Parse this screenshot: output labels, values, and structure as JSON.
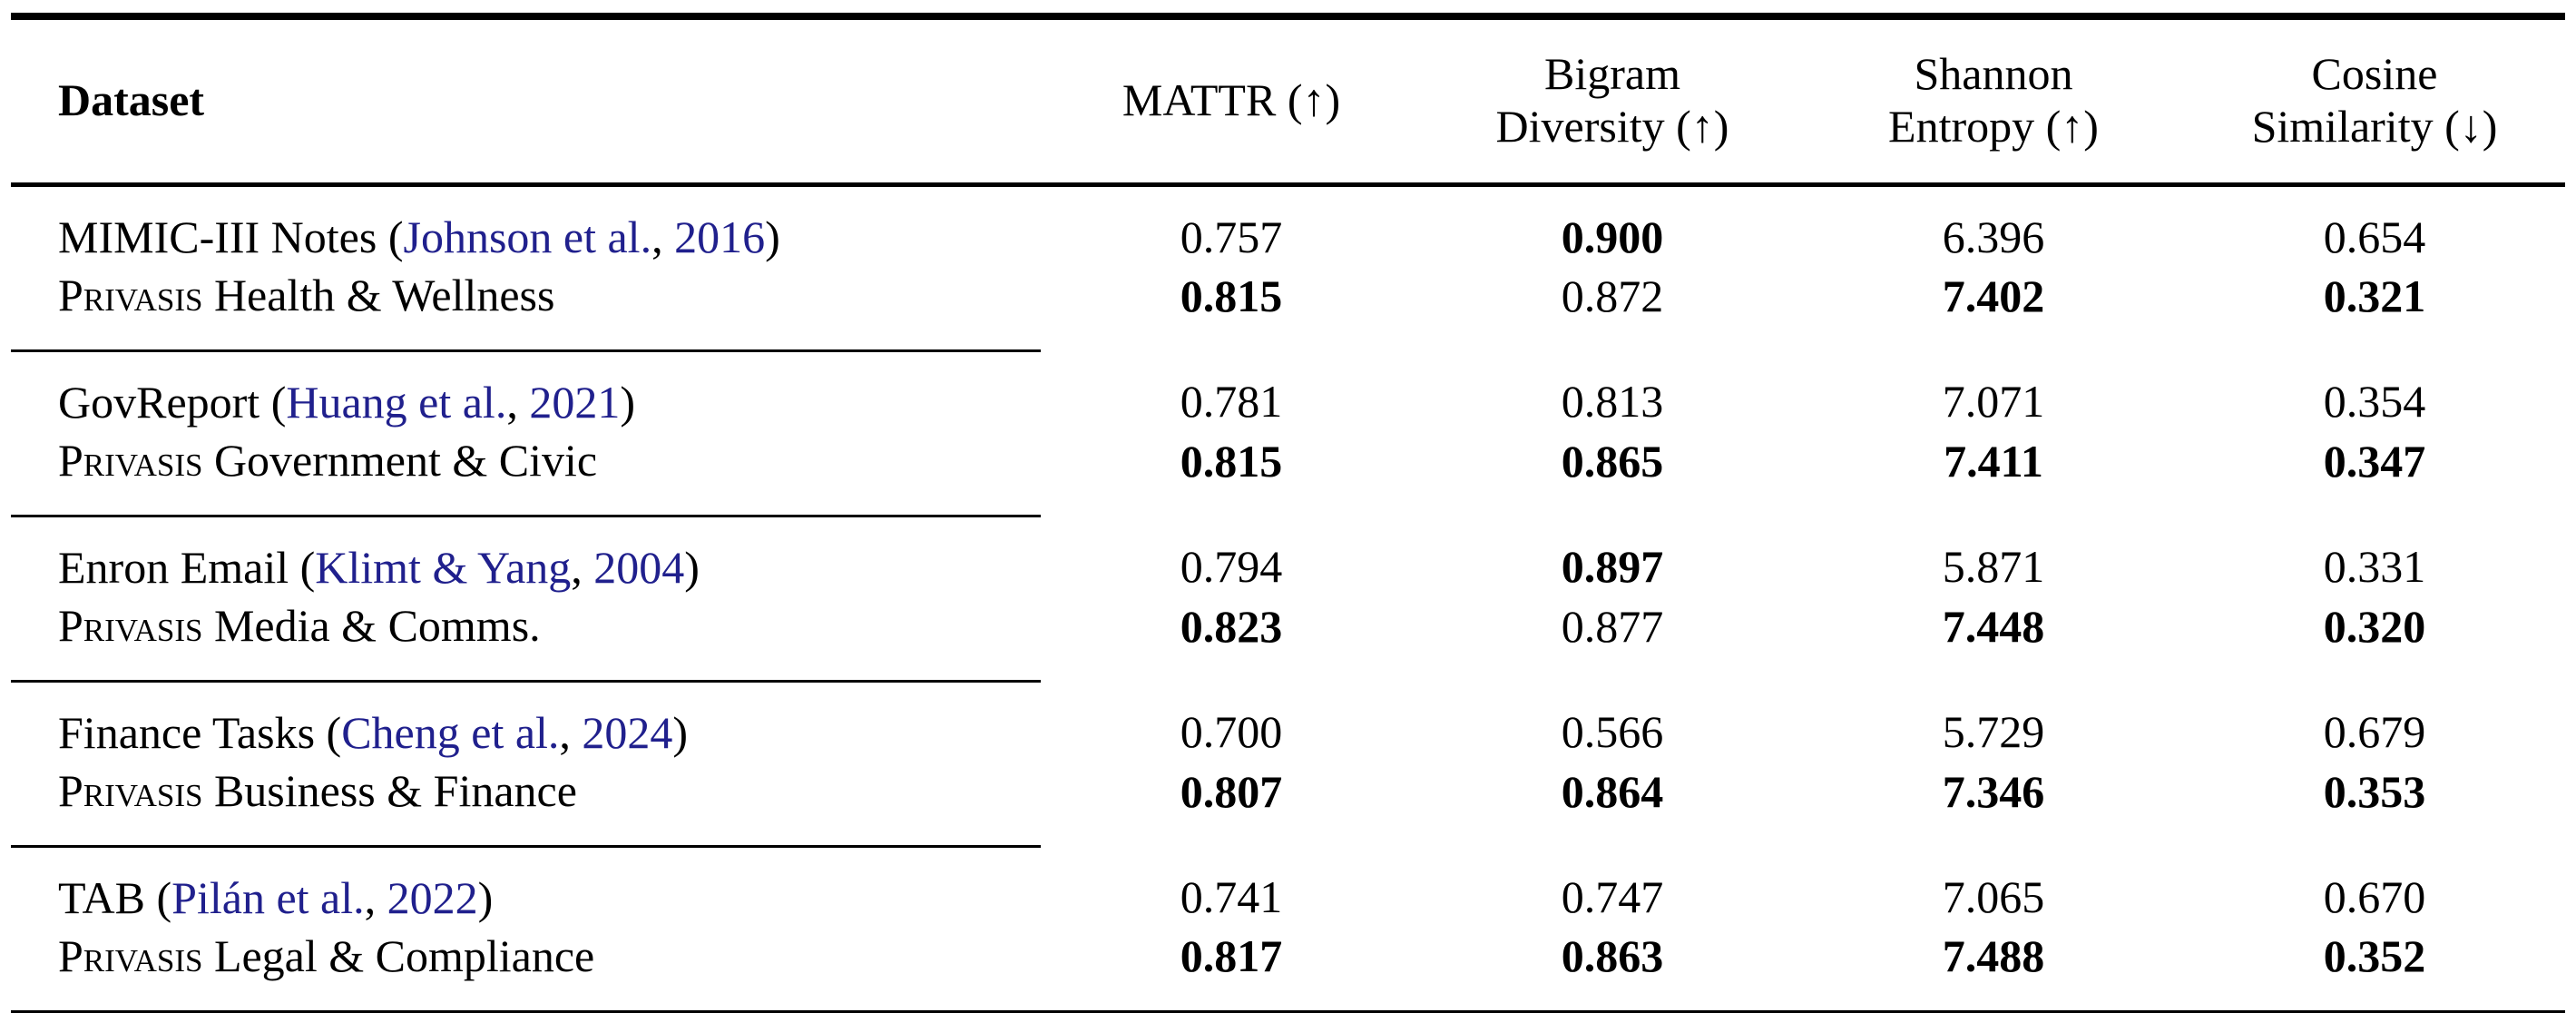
{
  "colors": {
    "text": "#000000",
    "citation_link": "#20208d",
    "rule": "#000000",
    "background": "#ffffff"
  },
  "table": {
    "header": {
      "dataset_label": "Dataset",
      "metrics": [
        {
          "line1": "MATTR (↑)",
          "line2": ""
        },
        {
          "line1": "Bigram",
          "line2": "Diversity (↑)"
        },
        {
          "line1": "Shannon",
          "line2": "Entropy (↑)"
        },
        {
          "line1": "Cosine",
          "line2": "Similarity (↓)"
        }
      ]
    },
    "groups": [
      {
        "baseline": {
          "name": "MIMIC-III Notes",
          "cite_open": " (",
          "cite_authors": "Johnson et al.",
          "cite_sep": ", ",
          "cite_year": "2016",
          "cite_close": ")",
          "values": [
            "0.757",
            "0.900",
            "6.396",
            "0.654"
          ],
          "bold": [
            false,
            true,
            false,
            false
          ]
        },
        "privasis": {
          "brand": "Privasis",
          "domain": " Health & Wellness",
          "values": [
            "0.815",
            "0.872",
            "7.402",
            "0.321"
          ],
          "bold": [
            true,
            false,
            true,
            true
          ]
        }
      },
      {
        "baseline": {
          "name": "GovReport",
          "cite_open": " (",
          "cite_authors": "Huang et al.",
          "cite_sep": ", ",
          "cite_year": "2021",
          "cite_close": ")",
          "values": [
            "0.781",
            "0.813",
            "7.071",
            "0.354"
          ],
          "bold": [
            false,
            false,
            false,
            false
          ]
        },
        "privasis": {
          "brand": "Privasis",
          "domain": " Government & Civic",
          "values": [
            "0.815",
            "0.865",
            "7.411",
            "0.347"
          ],
          "bold": [
            true,
            true,
            true,
            true
          ]
        }
      },
      {
        "baseline": {
          "name": "Enron Email",
          "cite_open": " (",
          "cite_authors": "Klimt & Yang",
          "cite_sep": ", ",
          "cite_year": "2004",
          "cite_close": ")",
          "values": [
            "0.794",
            "0.897",
            "5.871",
            "0.331"
          ],
          "bold": [
            false,
            true,
            false,
            false
          ]
        },
        "privasis": {
          "brand": "Privasis",
          "domain": " Media & Comms.",
          "values": [
            "0.823",
            "0.877",
            "7.448",
            "0.320"
          ],
          "bold": [
            true,
            false,
            true,
            true
          ]
        }
      },
      {
        "baseline": {
          "name": "Finance Tasks",
          "cite_open": " (",
          "cite_authors": "Cheng et al.",
          "cite_sep": ", ",
          "cite_year": "2024",
          "cite_close": ")",
          "values": [
            "0.700",
            "0.566",
            "5.729",
            "0.679"
          ],
          "bold": [
            false,
            false,
            false,
            false
          ]
        },
        "privasis": {
          "brand": "Privasis",
          "domain": " Business & Finance",
          "values": [
            "0.807",
            "0.864",
            "7.346",
            "0.353"
          ],
          "bold": [
            true,
            true,
            true,
            true
          ]
        }
      },
      {
        "baseline": {
          "name": "TAB",
          "cite_open": " (",
          "cite_authors": "Pilán et al.",
          "cite_sep": ", ",
          "cite_year": "2022",
          "cite_close": ")",
          "values": [
            "0.741",
            "0.747",
            "7.065",
            "0.670"
          ],
          "bold": [
            false,
            false,
            false,
            false
          ]
        },
        "privasis": {
          "brand": "Privasis",
          "domain": " Legal & Compliance",
          "values": [
            "0.817",
            "0.863",
            "7.488",
            "0.352"
          ],
          "bold": [
            true,
            true,
            true,
            true
          ]
        }
      }
    ]
  },
  "chart_data": {
    "type": "table",
    "columns": [
      "Dataset",
      "MATTR (↑)",
      "Bigram Diversity (↑)",
      "Shannon Entropy (↑)",
      "Cosine Similarity (↓)"
    ],
    "rows": [
      {
        "dataset": "MIMIC-III Notes (Johnson et al., 2016)",
        "mattr": 0.757,
        "bigram_diversity": 0.9,
        "shannon_entropy": 6.396,
        "cosine_similarity": 0.654
      },
      {
        "dataset": "Privasis Health & Wellness",
        "mattr": 0.815,
        "bigram_diversity": 0.872,
        "shannon_entropy": 7.402,
        "cosine_similarity": 0.321
      },
      {
        "dataset": "GovReport (Huang et al., 2021)",
        "mattr": 0.781,
        "bigram_diversity": 0.813,
        "shannon_entropy": 7.071,
        "cosine_similarity": 0.354
      },
      {
        "dataset": "Privasis Government & Civic",
        "mattr": 0.815,
        "bigram_diversity": 0.865,
        "shannon_entropy": 7.411,
        "cosine_similarity": 0.347
      },
      {
        "dataset": "Enron Email (Klimt & Yang, 2004)",
        "mattr": 0.794,
        "bigram_diversity": 0.897,
        "shannon_entropy": 5.871,
        "cosine_similarity": 0.331
      },
      {
        "dataset": "Privasis Media & Comms.",
        "mattr": 0.823,
        "bigram_diversity": 0.877,
        "shannon_entropy": 7.448,
        "cosine_similarity": 0.32
      },
      {
        "dataset": "Finance Tasks (Cheng et al., 2024)",
        "mattr": 0.7,
        "bigram_diversity": 0.566,
        "shannon_entropy": 5.729,
        "cosine_similarity": 0.679
      },
      {
        "dataset": "Privasis Business & Finance",
        "mattr": 0.807,
        "bigram_diversity": 0.864,
        "shannon_entropy": 7.346,
        "cosine_similarity": 0.353
      },
      {
        "dataset": "TAB (Pilán et al., 2022)",
        "mattr": 0.741,
        "bigram_diversity": 0.747,
        "shannon_entropy": 7.065,
        "cosine_similarity": 0.67
      },
      {
        "dataset": "Privasis Legal & Compliance",
        "mattr": 0.817,
        "bigram_diversity": 0.863,
        "shannon_entropy": 7.488,
        "cosine_similarity": 0.352
      }
    ]
  }
}
